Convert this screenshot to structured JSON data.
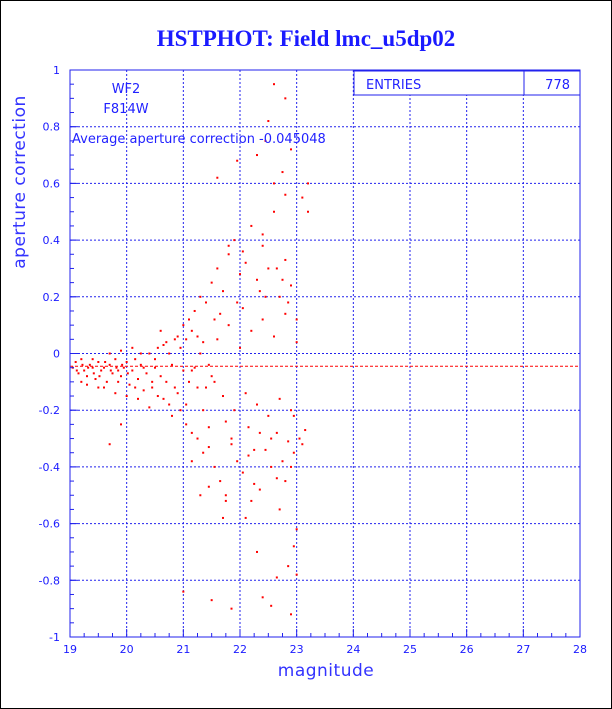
{
  "chart_data": {
    "type": "scatter",
    "title": "HSTPHOT: Field lmc_u5dp02",
    "xlabel": "magnitude",
    "ylabel": "aperture correction",
    "xlim": [
      19,
      28
    ],
    "ylim": [
      -1,
      1
    ],
    "x_ticks": [
      "19",
      "20",
      "21",
      "22",
      "23",
      "24",
      "25",
      "26",
      "27",
      "28"
    ],
    "y_ticks": [
      "1",
      "0.8",
      "0.6",
      "0.4",
      "0.2",
      "0",
      "-0.2",
      "-0.4",
      "-0.6",
      "-0.8",
      "-1"
    ],
    "grid": true,
    "annotations": {
      "camera": "WF2",
      "filter": "F814W",
      "average_text": "Average aperture correction -0.045048"
    },
    "stats_box": {
      "label": "ENTRIES",
      "value": "778"
    },
    "average_line_y": -0.045048,
    "colors": {
      "points": "#ff0000",
      "axes": "#2222ee",
      "title": "#1a1aff"
    },
    "points": [
      [
        19.05,
        -0.05
      ],
      [
        19.1,
        -0.03
      ],
      [
        19.15,
        -0.07
      ],
      [
        19.2,
        -0.02
      ],
      [
        19.25,
        -0.06
      ],
      [
        19.3,
        -0.08
      ],
      [
        19.35,
        -0.04
      ],
      [
        19.4,
        -0.05
      ],
      [
        19.45,
        -0.09
      ],
      [
        19.5,
        -0.03
      ],
      [
        19.55,
        -0.06
      ],
      [
        19.6,
        -0.05
      ],
      [
        19.65,
        -0.1
      ],
      [
        19.7,
        -0.04
      ],
      [
        19.75,
        -0.07
      ],
      [
        19.8,
        -0.02
      ],
      [
        19.85,
        -0.06
      ],
      [
        19.9,
        -0.08
      ],
      [
        19.95,
        -0.05
      ],
      [
        20.0,
        -0.03
      ],
      [
        20.05,
        -0.11
      ],
      [
        20.1,
        -0.06
      ],
      [
        20.15,
        -0.02
      ],
      [
        20.2,
        -0.09
      ],
      [
        20.25,
        -0.04
      ],
      [
        20.3,
        -0.13
      ],
      [
        20.35,
        -0.07
      ],
      [
        20.4,
        0.0
      ],
      [
        20.45,
        -0.12
      ],
      [
        20.5,
        -0.05
      ],
      [
        20.55,
        -0.15
      ],
      [
        20.6,
        -0.08
      ],
      [
        20.65,
        0.03
      ],
      [
        20.7,
        -0.1
      ],
      [
        20.75,
        -0.18
      ],
      [
        20.8,
        -0.04
      ],
      [
        20.85,
        0.05
      ],
      [
        20.9,
        -0.14
      ],
      [
        20.95,
        -0.2
      ],
      [
        21.0,
        -0.06
      ],
      [
        19.12,
        -0.06
      ],
      [
        19.22,
        -0.04
      ],
      [
        19.32,
        -0.05
      ],
      [
        19.42,
        -0.07
      ],
      [
        19.52,
        -0.08
      ],
      [
        19.62,
        -0.03
      ],
      [
        19.72,
        -0.06
      ],
      [
        19.82,
        -0.05
      ],
      [
        19.92,
        -0.04
      ],
      [
        20.02,
        -0.07
      ],
      [
        19.3,
        -0.11
      ],
      [
        19.6,
        -0.12
      ],
      [
        19.8,
        -0.14
      ],
      [
        19.9,
        0.01
      ],
      [
        20.1,
        0.02
      ],
      [
        20.2,
        -0.16
      ],
      [
        20.4,
        -0.19
      ],
      [
        20.6,
        0.08
      ],
      [
        20.8,
        -0.22
      ],
      [
        21.0,
        0.1
      ],
      [
        19.7,
        -0.32
      ],
      [
        19.9,
        -0.25
      ],
      [
        20.3,
        -0.05
      ],
      [
        20.5,
        -0.02
      ],
      [
        20.7,
        0.04
      ],
      [
        20.9,
        0.06
      ],
      [
        21.05,
        -0.25
      ],
      [
        21.1,
        0.12
      ],
      [
        21.15,
        -0.28
      ],
      [
        21.2,
        0.15
      ],
      [
        21.25,
        -0.3
      ],
      [
        21.3,
        0.2
      ],
      [
        21.35,
        -0.35
      ],
      [
        21.4,
        0.18
      ],
      [
        21.45,
        -0.33
      ],
      [
        21.5,
        0.25
      ],
      [
        21.55,
        -0.4
      ],
      [
        21.6,
        0.3
      ],
      [
        21.65,
        -0.45
      ],
      [
        21.7,
        0.22
      ],
      [
        21.75,
        -0.5
      ],
      [
        21.8,
        0.35
      ],
      [
        21.85,
        -0.3
      ],
      [
        21.9,
        0.4
      ],
      [
        21.95,
        -0.38
      ],
      [
        22.0,
        0.28
      ],
      [
        22.05,
        -0.42
      ],
      [
        22.1,
        0.32
      ],
      [
        22.15,
        -0.36
      ],
      [
        22.2,
        0.45
      ],
      [
        22.25,
        -0.46
      ],
      [
        22.3,
        0.26
      ],
      [
        22.35,
        -0.28
      ],
      [
        22.4,
        0.38
      ],
      [
        22.45,
        -0.34
      ],
      [
        22.5,
        0.3
      ],
      [
        22.55,
        -0.4
      ],
      [
        22.6,
        0.5
      ],
      [
        22.65,
        -0.44
      ],
      [
        22.7,
        0.2
      ],
      [
        22.75,
        -0.38
      ],
      [
        22.8,
        0.33
      ],
      [
        22.85,
        -0.31
      ],
      [
        22.9,
        0.24
      ],
      [
        22.95,
        -0.35
      ],
      [
        23.0,
        0.12
      ],
      [
        23.05,
        -0.3
      ],
      [
        23.1,
        0.55
      ],
      [
        23.15,
        -0.27
      ],
      [
        23.2,
        0.5
      ],
      [
        21.1,
        -0.1
      ],
      [
        21.2,
        -0.05
      ],
      [
        21.3,
        0.0
      ],
      [
        21.4,
        -0.12
      ],
      [
        21.5,
        -0.08
      ],
      [
        21.6,
        0.05
      ],
      [
        21.7,
        -0.15
      ],
      [
        21.8,
        0.1
      ],
      [
        21.9,
        -0.2
      ],
      [
        22.0,
        0.02
      ],
      [
        22.1,
        -0.14
      ],
      [
        22.2,
        0.08
      ],
      [
        22.3,
        -0.18
      ],
      [
        22.4,
        0.12
      ],
      [
        22.5,
        -0.22
      ],
      [
        22.6,
        0.06
      ],
      [
        22.7,
        -0.16
      ],
      [
        22.8,
        0.14
      ],
      [
        22.9,
        -0.2
      ],
      [
        23.0,
        0.04
      ],
      [
        21.15,
        0.08
      ],
      [
        21.35,
        -0.2
      ],
      [
        21.55,
        0.12
      ],
      [
        21.75,
        -0.24
      ],
      [
        21.95,
        0.18
      ],
      [
        22.15,
        -0.26
      ],
      [
        22.35,
        0.22
      ],
      [
        22.55,
        -0.3
      ],
      [
        22.75,
        0.26
      ],
      [
        22.95,
        -0.22
      ],
      [
        21.05,
        -0.18
      ],
      [
        21.25,
        0.06
      ],
      [
        21.45,
        -0.26
      ],
      [
        21.65,
        0.14
      ],
      [
        21.85,
        -0.32
      ],
      [
        22.05,
        0.16
      ],
      [
        22.25,
        -0.34
      ],
      [
        22.45,
        0.2
      ],
      [
        22.65,
        -0.28
      ],
      [
        22.85,
        0.18
      ],
      [
        21.6,
        0.62
      ],
      [
        21.75,
        -0.52
      ],
      [
        21.95,
        0.68
      ],
      [
        22.1,
        -0.58
      ],
      [
        22.3,
        0.7
      ],
      [
        22.45,
        0.75
      ],
      [
        22.5,
        0.82
      ],
      [
        22.6,
        0.95
      ],
      [
        22.8,
        0.9
      ],
      [
        22.9,
        0.72
      ],
      [
        23.0,
        -0.62
      ],
      [
        22.95,
        -0.68
      ],
      [
        22.85,
        -0.75
      ],
      [
        23.0,
        -0.78
      ],
      [
        22.4,
        -0.86
      ],
      [
        22.9,
        -0.92
      ],
      [
        22.55,
        -0.89
      ],
      [
        21.85,
        -0.9
      ],
      [
        21.5,
        -0.87
      ],
      [
        22.65,
        -0.79
      ],
      [
        21.3,
        -0.5
      ],
      [
        21.45,
        -0.47
      ],
      [
        21.7,
        -0.58
      ],
      [
        21.15,
        -0.38
      ],
      [
        22.2,
        -0.52
      ],
      [
        22.35,
        -0.48
      ],
      [
        22.7,
        -0.55
      ],
      [
        22.8,
        -0.45
      ],
      [
        22.9,
        -0.4
      ],
      [
        23.1,
        -0.32
      ],
      [
        21.0,
        -0.84
      ],
      [
        22.3,
        -0.7
      ],
      [
        22.6,
        0.6
      ],
      [
        22.75,
        0.64
      ],
      [
        23.2,
        0.6
      ],
      [
        22.8,
        0.56
      ],
      [
        22.4,
        0.42
      ],
      [
        21.8,
        0.38
      ],
      [
        22.05,
        0.36
      ],
      [
        22.65,
        0.3
      ],
      [
        19.2,
        -0.1
      ],
      [
        19.4,
        -0.02
      ],
      [
        19.5,
        -0.12
      ],
      [
        19.7,
        0.0
      ],
      [
        19.85,
        -0.1
      ],
      [
        20.0,
        -0.15
      ],
      [
        20.15,
        -0.12
      ],
      [
        20.25,
        0.0
      ],
      [
        20.45,
        -0.1
      ],
      [
        20.55,
        0.02
      ],
      [
        20.65,
        -0.16
      ],
      [
        20.75,
        0.0
      ],
      [
        20.85,
        -0.12
      ],
      [
        20.95,
        0.02
      ],
      [
        21.05,
        0.05
      ],
      [
        21.15,
        -0.06
      ],
      [
        21.25,
        -0.12
      ],
      [
        21.35,
        0.04
      ],
      [
        21.45,
        -0.04
      ],
      [
        21.55,
        -0.1
      ]
    ]
  }
}
